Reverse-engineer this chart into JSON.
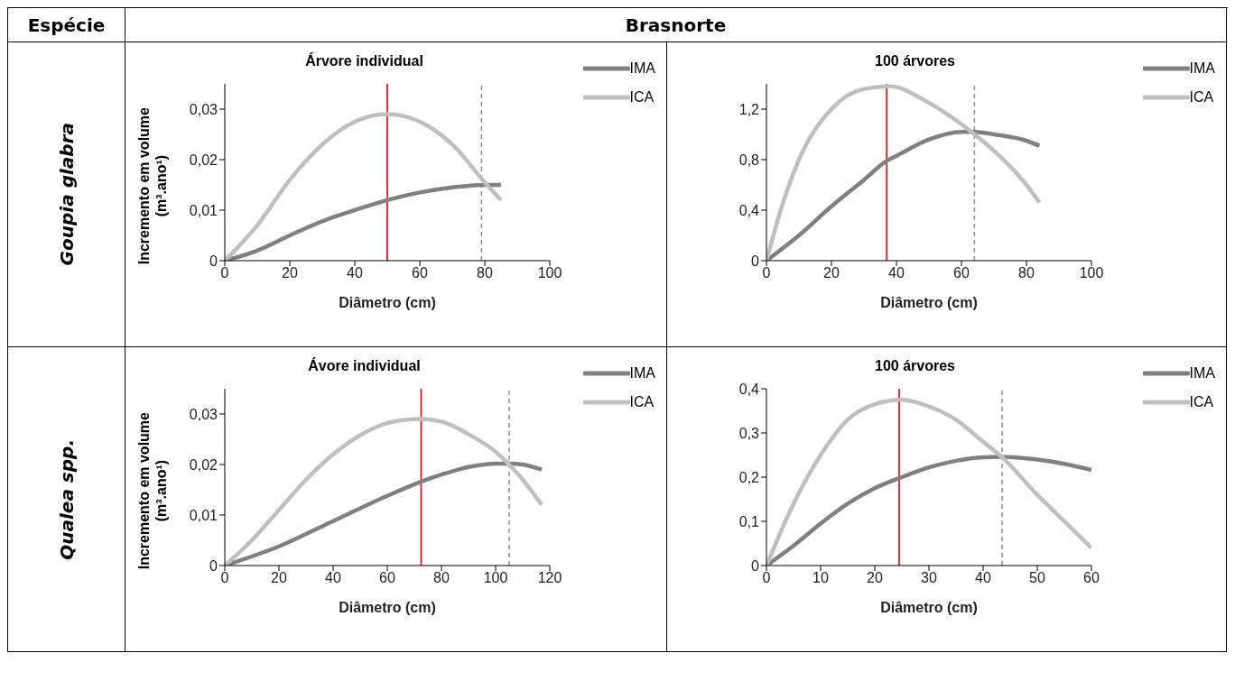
{
  "chart_data": [
    {
      "type": "other",
      "annotations": [
        "Espécie",
        "Brasnorte",
        "Goupia glabra",
        "Qualea spp."
      ]
    },
    {
      "type": "line",
      "title": "Árvore individual",
      "xlabel": "Diâmetro (cm)",
      "ylabel": "Incremento em volume (m³.ano¹)",
      "legend": "top right",
      "xlim": [
        0,
        100
      ],
      "xticks": [
        0,
        20,
        40,
        60,
        80,
        100
      ],
      "ylim": [
        0,
        0.035
      ],
      "yticks": [
        {
          "value": 0,
          "label": "0"
        },
        {
          "value": 0.01,
          "label": "0,01"
        },
        {
          "value": 0.02,
          "label": "0,02"
        },
        {
          "value": 0.03,
          "label": "0,03"
        }
      ],
      "series": [
        {
          "name": "IMA",
          "color": "#808080",
          "x": [
            0,
            10,
            20,
            30,
            40,
            50,
            60,
            70,
            80,
            85
          ],
          "values": [
            0,
            0.002,
            0.005,
            0.0078,
            0.01,
            0.012,
            0.0135,
            0.0145,
            0.015,
            0.015
          ]
        },
        {
          "name": "ICA",
          "color": "#bfbfbf",
          "x": [
            0,
            10,
            20,
            30,
            40,
            50,
            60,
            70,
            80,
            85
          ],
          "values": [
            0,
            0.007,
            0.016,
            0.023,
            0.0275,
            0.029,
            0.0275,
            0.023,
            0.0155,
            0.012
          ]
        }
      ],
      "ref_lines": [
        {
          "axis": "x",
          "value": 50,
          "color": "#e8171f",
          "line_style": "solid"
        },
        {
          "axis": "x",
          "value": 79,
          "color": "#8c8c8c",
          "line_style": "dashed"
        }
      ]
    },
    {
      "type": "line",
      "title": "100 árvores",
      "xlabel": "Diâmetro (cm)",
      "legend": "top right",
      "xlim": [
        0,
        100
      ],
      "xticks": [
        0,
        20,
        40,
        60,
        80,
        100
      ],
      "ylim": [
        0,
        1.4
      ],
      "yticks": [
        {
          "value": 0,
          "label": "0"
        },
        {
          "value": 0.4,
          "label": "0,4"
        },
        {
          "value": 0.8,
          "label": "0,8"
        },
        {
          "value": 1.2,
          "label": "1,2"
        }
      ],
      "series": [
        {
          "name": "IMA",
          "color": "#808080",
          "x": [
            0,
            10,
            20,
            30,
            37,
            40,
            50,
            60,
            64,
            70,
            80,
            84
          ],
          "values": [
            0,
            0.2,
            0.43,
            0.64,
            0.79,
            0.83,
            0.96,
            1.02,
            1.02,
            1.0,
            0.95,
            0.91
          ]
        },
        {
          "name": "ICA",
          "color": "#bfbfbf",
          "x": [
            0,
            5,
            10,
            20,
            30,
            38,
            50,
            60,
            64,
            70,
            80,
            84
          ],
          "values": [
            0,
            0.45,
            0.8,
            1.2,
            1.36,
            1.38,
            1.25,
            1.08,
            1.0,
            0.87,
            0.6,
            0.46
          ]
        }
      ],
      "ref_lines": [
        {
          "axis": "x",
          "value": 37,
          "color": "#e8171f",
          "line_style": "solid"
        },
        {
          "axis": "x",
          "value": 64,
          "color": "#8c8c8c",
          "line_style": "dashed"
        }
      ]
    },
    {
      "type": "line",
      "title": "Ávore individual",
      "xlabel": "Diâmetro (cm)",
      "ylabel": "Incremento em volume (m³.ano¹)",
      "legend": "top right",
      "xlim": [
        0,
        120
      ],
      "xticks": [
        0,
        20,
        40,
        60,
        80,
        100,
        120
      ],
      "ylim": [
        0,
        0.035
      ],
      "yticks": [
        {
          "value": 0,
          "label": "0"
        },
        {
          "value": 0.01,
          "label": "0,01"
        },
        {
          "value": 0.02,
          "label": "0,02"
        },
        {
          "value": 0.03,
          "label": "0,03"
        }
      ],
      "series": [
        {
          "name": "IMA",
          "color": "#808080",
          "x": [
            0,
            20,
            40,
            60,
            72,
            80,
            90,
            100,
            105,
            110,
            117
          ],
          "values": [
            0,
            0.0038,
            0.0088,
            0.0138,
            0.0165,
            0.018,
            0.0195,
            0.0202,
            0.0202,
            0.02,
            0.019
          ]
        },
        {
          "name": "ICA",
          "color": "#bfbfbf",
          "x": [
            0,
            10,
            20,
            30,
            40,
            50,
            60,
            72,
            80,
            90,
            100,
            105,
            110,
            117
          ],
          "values": [
            0,
            0.005,
            0.011,
            0.017,
            0.022,
            0.0258,
            0.0282,
            0.029,
            0.0285,
            0.026,
            0.0225,
            0.02,
            0.017,
            0.012
          ]
        }
      ],
      "ref_lines": [
        {
          "axis": "x",
          "value": 72.5,
          "color": "#e8171f",
          "line_style": "solid"
        },
        {
          "axis": "x",
          "value": 105,
          "color": "#8c8c8c",
          "line_style": "dashed"
        }
      ]
    },
    {
      "type": "line",
      "title": "100 árvores",
      "xlabel": "Diâmetro (cm)",
      "legend": "top right",
      "xlim": [
        0,
        60
      ],
      "xticks": [
        0,
        10,
        20,
        30,
        40,
        50,
        60
      ],
      "ylim": [
        0,
        0.4
      ],
      "yticks": [
        {
          "value": 0,
          "label": "0"
        },
        {
          "value": 0.1,
          "label": "0,1"
        },
        {
          "value": 0.2,
          "label": "0,2"
        },
        {
          "value": 0.3,
          "label": "0,3"
        },
        {
          "value": 0.4,
          "label": "0,4"
        }
      ],
      "series": [
        {
          "name": "IMA",
          "color": "#808080",
          "x": [
            0,
            5,
            10,
            15,
            20,
            25,
            30,
            35,
            40,
            43,
            50,
            55,
            60
          ],
          "values": [
            0,
            0.045,
            0.095,
            0.14,
            0.175,
            0.2,
            0.222,
            0.237,
            0.245,
            0.246,
            0.24,
            0.23,
            0.216
          ]
        },
        {
          "name": "ICA",
          "color": "#bfbfbf",
          "x": [
            0,
            5,
            10,
            15,
            20,
            25,
            30,
            35,
            40,
            43.5,
            50,
            55,
            60
          ],
          "values": [
            0,
            0.14,
            0.25,
            0.33,
            0.365,
            0.375,
            0.36,
            0.33,
            0.28,
            0.245,
            0.16,
            0.1,
            0.04
          ]
        }
      ],
      "ref_lines": [
        {
          "axis": "x",
          "value": 24.5,
          "color": "#e8171f",
          "line_style": "solid"
        },
        {
          "axis": "x",
          "value": 43.5,
          "color": "#8c8c8c",
          "line_style": "dashed"
        }
      ]
    }
  ]
}
